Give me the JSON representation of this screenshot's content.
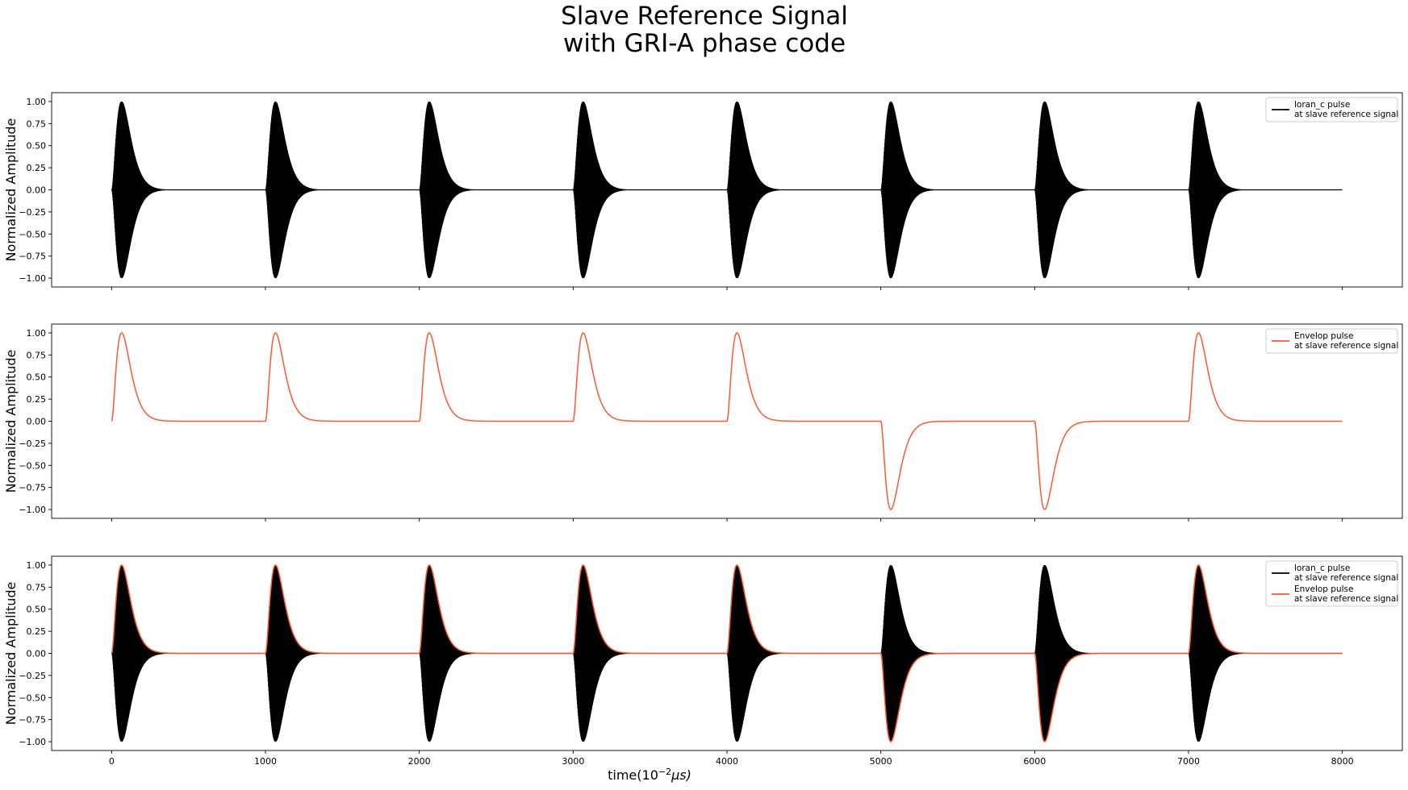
{
  "figure": {
    "title_line1": "Slave Reference Signal",
    "title_line2": "with GRI-A phase code",
    "xlabel": "time",
    "xlabel_base": "(10",
    "xlabel_exp": "−2",
    "xlabel_unit": "μs)"
  },
  "colors": {
    "carrier": "#000000",
    "envelope": "#ff5733"
  },
  "chart_data": [
    {
      "type": "line",
      "ylabel": "Normalized Amplitude",
      "xlim": [
        -390,
        8390
      ],
      "ylim": [
        -1.1,
        1.1
      ],
      "xticks": [
        0,
        1000,
        2000,
        3000,
        4000,
        5000,
        6000,
        7000,
        8000
      ],
      "xtick_labels": [
        "",
        "",
        "",
        "",
        "",
        "",
        "",
        "",
        ""
      ],
      "yticks": [
        1.0,
        0.75,
        0.5,
        0.25,
        0.0,
        -0.25,
        -0.5,
        -0.75,
        -1.0
      ],
      "ytick_labels": [
        "1.00",
        "0.75",
        "0.50",
        "0.25",
        "0.00",
        "−0.25",
        "−0.50",
        "−0.75",
        "−1.00"
      ],
      "series": [
        {
          "name": "loran_c pulse",
          "legend_line1": "loran_c pulse",
          "legend_line2": "at slave reference signal",
          "kind": "carrier",
          "color": "#000000",
          "pulse_starts": [
            0,
            1000,
            2000,
            3000,
            4000,
            5000,
            6000,
            7000
          ],
          "phase_code": [
            1,
            1,
            1,
            1,
            1,
            -1,
            -1,
            1
          ],
          "peak": 1.0,
          "peak_time": 65,
          "end_time": 8000
        }
      ]
    },
    {
      "type": "line",
      "ylabel": "Normalized Amplitude",
      "xlim": [
        -390,
        8390
      ],
      "ylim": [
        -1.1,
        1.1
      ],
      "xticks": [
        0,
        1000,
        2000,
        3000,
        4000,
        5000,
        6000,
        7000,
        8000
      ],
      "xtick_labels": [
        "",
        "",
        "",
        "",
        "",
        "",
        "",
        "",
        ""
      ],
      "yticks": [
        1.0,
        0.75,
        0.5,
        0.25,
        0.0,
        -0.25,
        -0.5,
        -0.75,
        -1.0
      ],
      "ytick_labels": [
        "1.00",
        "0.75",
        "0.50",
        "0.25",
        "0.00",
        "−0.25",
        "−0.50",
        "−0.75",
        "−1.00"
      ],
      "series": [
        {
          "name": "Envelop pulse",
          "legend_line1": "Envelop pulse",
          "legend_line2": "at slave reference signal",
          "kind": "envelope",
          "color": "#ff5733",
          "pulse_starts": [
            0,
            1000,
            2000,
            3000,
            4000,
            5000,
            6000,
            7000
          ],
          "phase_code": [
            1,
            1,
            1,
            1,
            1,
            -1,
            -1,
            1
          ],
          "peak": 1.0,
          "peak_time": 65,
          "end_time": 8000
        }
      ]
    },
    {
      "type": "line",
      "ylabel": "Normalized Amplitude",
      "xlim": [
        -390,
        8390
      ],
      "ylim": [
        -1.1,
        1.1
      ],
      "xticks": [
        0,
        1000,
        2000,
        3000,
        4000,
        5000,
        6000,
        7000,
        8000
      ],
      "xtick_labels": [
        "0",
        "1000",
        "2000",
        "3000",
        "4000",
        "5000",
        "6000",
        "7000",
        "8000"
      ],
      "yticks": [
        1.0,
        0.75,
        0.5,
        0.25,
        0.0,
        -0.25,
        -0.5,
        -0.75,
        -1.0
      ],
      "ytick_labels": [
        "1.00",
        "0.75",
        "0.50",
        "0.25",
        "0.00",
        "−0.25",
        "−0.50",
        "−0.75",
        "−1.00"
      ],
      "series": [
        {
          "name": "loran_c pulse",
          "legend_line1": "loran_c pulse",
          "legend_line2": "at slave reference signal",
          "kind": "carrier",
          "color": "#000000",
          "pulse_starts": [
            0,
            1000,
            2000,
            3000,
            4000,
            5000,
            6000,
            7000
          ],
          "phase_code": [
            1,
            1,
            1,
            1,
            1,
            -1,
            -1,
            1
          ],
          "peak": 1.0,
          "peak_time": 65,
          "end_time": 8000
        },
        {
          "name": "Envelop pulse",
          "legend_line1": "Envelop pulse",
          "legend_line2": "at slave reference signal",
          "kind": "envelope",
          "color": "#ff5733",
          "pulse_starts": [
            0,
            1000,
            2000,
            3000,
            4000,
            5000,
            6000,
            7000
          ],
          "phase_code": [
            1,
            1,
            1,
            1,
            1,
            -1,
            -1,
            1
          ],
          "peak": 1.0,
          "peak_time": 65,
          "end_time": 8000
        }
      ]
    }
  ]
}
